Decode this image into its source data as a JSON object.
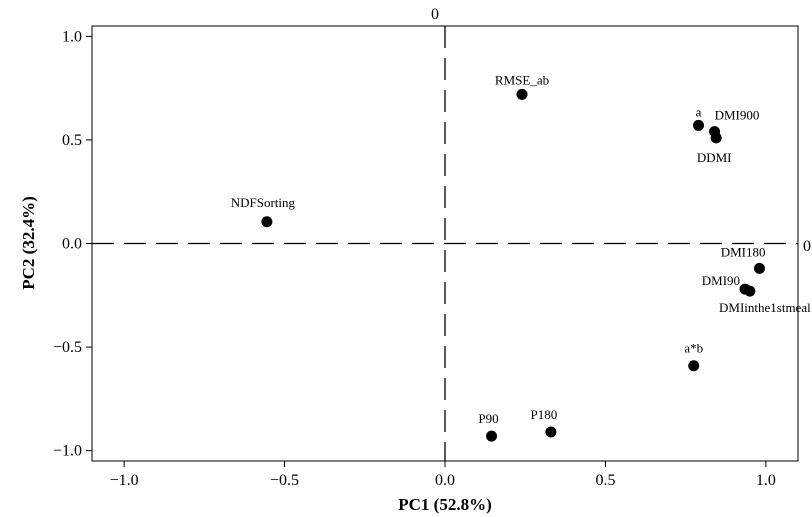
{
  "chart_data": {
    "type": "scatter",
    "xlabel": "PC1 (52.8%)",
    "ylabel": "PC2 (32.4%)",
    "xlim": [
      -1.1,
      1.1
    ],
    "ylim": [
      -1.05,
      1.05
    ],
    "x_ticks": [
      -1.0,
      -0.5,
      0.0,
      0.5,
      1.0
    ],
    "y_ticks": [
      -1.0,
      -0.5,
      0.0,
      0.5,
      1.0
    ],
    "x_tick_labels": [
      "−1.0",
      "−0.5",
      "0.0",
      "0.5",
      "1.0"
    ],
    "y_tick_labels": [
      "−1.0",
      "−0.5",
      "0.0",
      "0.5",
      "1.0"
    ],
    "reference_lines": {
      "vertical_x": 0,
      "horizontal_y": 0,
      "style": "dashed",
      "vertical_label": "0",
      "horizontal_label": "0"
    },
    "grid": false,
    "points": [
      {
        "label": "RMSE_ab",
        "x": 0.24,
        "y": 0.72
      },
      {
        "label": "a",
        "x": 0.79,
        "y": 0.57
      },
      {
        "label": "DMI900",
        "x": 0.84,
        "y": 0.54
      },
      {
        "label": "DDMI",
        "x": 0.845,
        "y": 0.51
      },
      {
        "label": "NDFSorting",
        "x": -0.555,
        "y": 0.105
      },
      {
        "label": "DMI180",
        "x": 0.98,
        "y": -0.12
      },
      {
        "label": "DMI90",
        "x": 0.935,
        "y": -0.22
      },
      {
        "label": "DMIinthe1stmeal",
        "x": 0.95,
        "y": -0.23
      },
      {
        "label": "a*b",
        "x": 0.775,
        "y": -0.59
      },
      {
        "label": "P90",
        "x": 0.145,
        "y": -0.93
      },
      {
        "label": "P180",
        "x": 0.33,
        "y": -0.91
      }
    ]
  }
}
